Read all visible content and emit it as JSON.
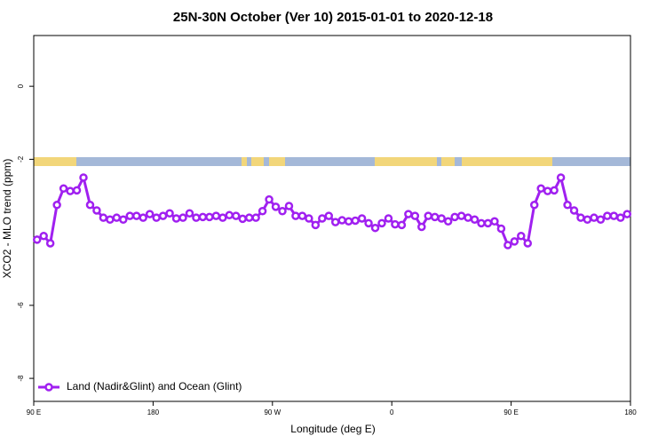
{
  "chart_data": {
    "type": "line",
    "title": "25N-30N October (Ver 10)   2015-01-01 to 2020-12-18",
    "x_label": "Longitude (deg E)",
    "y_label": "XCO2 - MLO trend (ppm)",
    "xlim": [
      90,
      540
    ],
    "xticks": [
      {
        "value": 90,
        "label": "90 E"
      },
      {
        "value": 180,
        "label": "180"
      },
      {
        "value": 270,
        "label": "90 W"
      },
      {
        "value": 360,
        "label": "0"
      },
      {
        "value": 450,
        "label": "90 E"
      },
      {
        "value": 540,
        "label": "180"
      }
    ],
    "ylim": [
      -8.63,
      1.39
    ],
    "yticks": [
      -8,
      -6,
      -2,
      0
    ],
    "legend": "bottom-left",
    "x": [
      92.5,
      97.5,
      102.5,
      107.5,
      112.5,
      117.5,
      122.5,
      127.5,
      132.5,
      137.5,
      142.5,
      147.5,
      152.5,
      157.5,
      162.5,
      167.5,
      172.5,
      177.5,
      182.5,
      187.5,
      192.5,
      197.5,
      202.5,
      207.5,
      212.5,
      217.5,
      222.5,
      227.5,
      232.5,
      237.5,
      242.5,
      247.5,
      252.5,
      257.5,
      262.5,
      267.5,
      272.5,
      277.5,
      282.5,
      287.5,
      292.5,
      297.5,
      302.5,
      307.5,
      312.5,
      317.5,
      322.5,
      327.5,
      332.5,
      337.5,
      342.5,
      347.5,
      352.5,
      357.5,
      362.5,
      367.5,
      372.5,
      377.5,
      382.5,
      387.5,
      392.5,
      397.5,
      402.5,
      407.5,
      412.5,
      417.5,
      422.5,
      427.5,
      432.5,
      437.5,
      442.5,
      447.5,
      452.5,
      457.5,
      462.5,
      467.5,
      472.5,
      477.5,
      482.5,
      487.5,
      492.5,
      497.5,
      502.5,
      507.5,
      512.5,
      517.5,
      522.5,
      527.5,
      532.5,
      537.5
    ],
    "series": [
      {
        "name": "Land (Nadir&Glint) and Ocean (Glint)",
        "color": "#a020f0",
        "values": [
          -4.2,
          -4.1,
          -4.3,
          -3.25,
          -2.8,
          -2.87,
          -2.85,
          -2.5,
          -3.25,
          -3.4,
          -3.6,
          -3.65,
          -3.6,
          -3.65,
          -3.55,
          -3.55,
          -3.6,
          -3.5,
          -3.6,
          -3.55,
          -3.48,
          -3.62,
          -3.6,
          -3.48,
          -3.6,
          -3.58,
          -3.58,
          -3.55,
          -3.6,
          -3.53,
          -3.55,
          -3.63,
          -3.6,
          -3.6,
          -3.42,
          -3.1,
          -3.3,
          -3.42,
          -3.28,
          -3.55,
          -3.55,
          -3.62,
          -3.8,
          -3.62,
          -3.55,
          -3.72,
          -3.67,
          -3.7,
          -3.68,
          -3.62,
          -3.75,
          -3.88,
          -3.75,
          -3.62,
          -3.78,
          -3.8,
          -3.5,
          -3.55,
          -3.85,
          -3.55,
          -3.58,
          -3.62,
          -3.7,
          -3.58,
          -3.55,
          -3.6,
          -3.65,
          -3.75,
          -3.75,
          -3.7,
          -3.9,
          -4.35,
          -4.25,
          -4.1,
          -4.3,
          -3.25,
          -2.8,
          -2.87,
          -2.85,
          -2.5,
          -3.25,
          -3.4,
          -3.6,
          -3.65,
          -3.6,
          -3.65,
          -3.55,
          -3.55,
          -3.6,
          -3.5
        ]
      }
    ]
  }
}
